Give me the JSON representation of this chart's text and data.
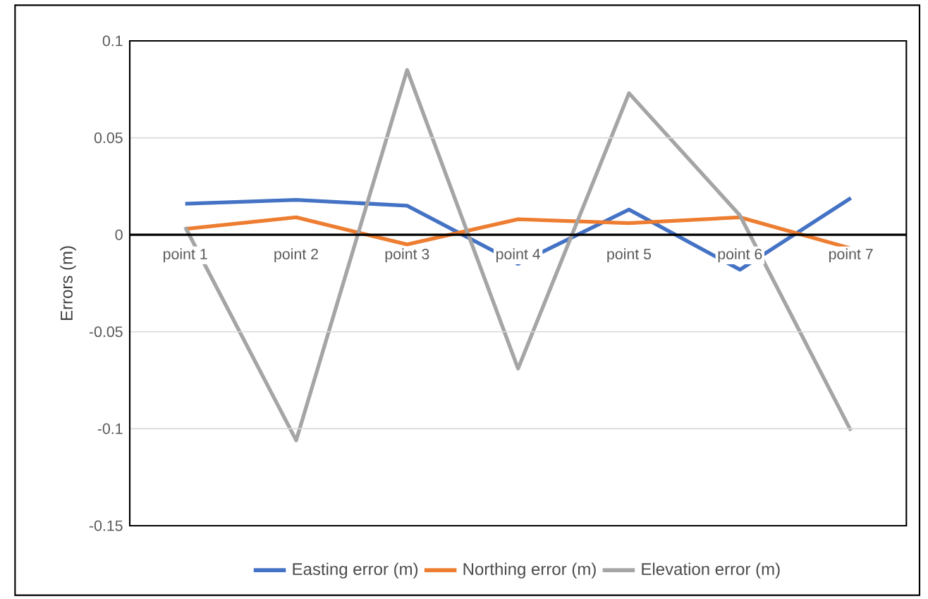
{
  "chart_data": {
    "type": "line",
    "ylabel": "Errors (m)",
    "categories": [
      "point 1",
      "point 2",
      "point 3",
      "point 4",
      "point 5",
      "point 6",
      "point 7"
    ],
    "series": [
      {
        "name": "Easting error (m)",
        "color": "#4472c4",
        "values": [
          0.016,
          0.018,
          0.015,
          -0.015,
          0.013,
          -0.018,
          0.019
        ]
      },
      {
        "name": "Northing error (m)",
        "color": "#ed7d31",
        "values": [
          0.003,
          0.009,
          -0.005,
          0.008,
          0.006,
          0.009,
          -0.007
        ]
      },
      {
        "name": "Elevation error (m)",
        "color": "#a5a5a5",
        "values": [
          0.004,
          -0.106,
          0.085,
          -0.069,
          0.073,
          0.01,
          -0.101
        ]
      }
    ],
    "ylim": [
      -0.15,
      0.1
    ],
    "yticks": [
      -0.15,
      -0.1,
      -0.05,
      0,
      0.05,
      0.1
    ],
    "grid": "y",
    "legend": "bottom"
  }
}
